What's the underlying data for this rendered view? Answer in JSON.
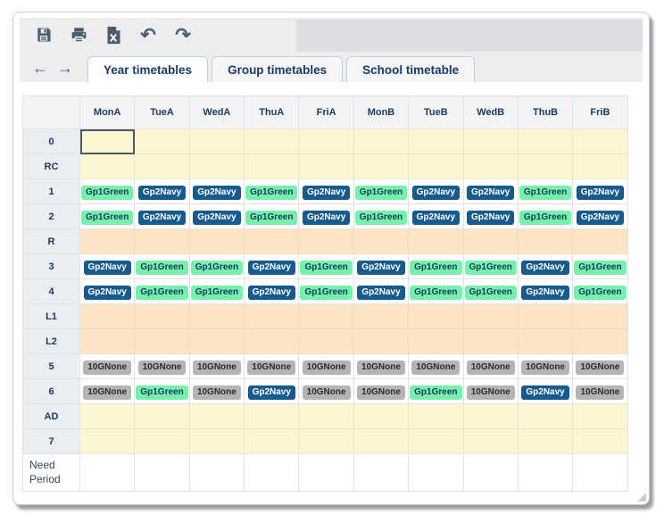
{
  "toolbar": {
    "icons": [
      {
        "name": "save-icon"
      },
      {
        "name": "print-icon"
      },
      {
        "name": "excel-export-icon"
      },
      {
        "name": "undo-icon",
        "glyph": "↶"
      },
      {
        "name": "redo-icon",
        "glyph": "↷"
      }
    ]
  },
  "tab_bar": {
    "back_arrow": "←",
    "forward_arrow": "→",
    "tabs": [
      {
        "label": "Year timetables",
        "active": true
      },
      {
        "label": "Group timetables",
        "active": false
      },
      {
        "label": "School timetable",
        "active": false
      }
    ]
  },
  "colors": {
    "accent_navy": "#1b3a66",
    "icon_slate": "#4a5c6e",
    "row_yellow": "#fdf6d1",
    "row_peach": "#fce5c5",
    "toolbar_gray": "#ecedef",
    "band_gray": "#dcdee2"
  },
  "timetable": {
    "columns": [
      "MonA",
      "TueA",
      "WedA",
      "ThuA",
      "FriA",
      "MonB",
      "TueB",
      "WedB",
      "ThuB",
      "FriB"
    ],
    "badge_styles": {
      "Gp1Green": {
        "bg": "#76f0ac",
        "fg": "#123a5e"
      },
      "Gp2Navy": {
        "bg": "#175a8e",
        "fg": "#ffffff"
      },
      "10GNone": {
        "bg": "#b4b4b4",
        "fg": "#2b2b2b"
      }
    },
    "rows": [
      {
        "label": "0",
        "bg": "yellow",
        "selected_cell": 0,
        "cells": [
          "",
          "",
          "",
          "",
          "",
          "",
          "",
          "",
          "",
          ""
        ]
      },
      {
        "label": "RC",
        "bg": "yellow",
        "cells": [
          "",
          "",
          "",
          "",
          "",
          "",
          "",
          "",
          "",
          ""
        ]
      },
      {
        "label": "1",
        "bg": "white",
        "cells": [
          "Gp1Green",
          "Gp2Navy",
          "Gp2Navy",
          "Gp1Green",
          "Gp2Navy",
          "Gp1Green",
          "Gp2Navy",
          "Gp2Navy",
          "Gp1Green",
          "Gp2Navy"
        ]
      },
      {
        "label": "2",
        "bg": "white",
        "cells": [
          "Gp1Green",
          "Gp2Navy",
          "Gp2Navy",
          "Gp1Green",
          "Gp2Navy",
          "Gp1Green",
          "Gp2Navy",
          "Gp2Navy",
          "Gp1Green",
          "Gp2Navy"
        ]
      },
      {
        "label": "R",
        "bg": "peach",
        "cells": [
          "",
          "",
          "",
          "",
          "",
          "",
          "",
          "",
          "",
          ""
        ]
      },
      {
        "label": "3",
        "bg": "white",
        "cells": [
          "Gp2Navy",
          "Gp1Green",
          "Gp1Green",
          "Gp2Navy",
          "Gp1Green",
          "Gp2Navy",
          "Gp1Green",
          "Gp1Green",
          "Gp2Navy",
          "Gp1Green"
        ]
      },
      {
        "label": "4",
        "bg": "white",
        "cells": [
          "Gp2Navy",
          "Gp1Green",
          "Gp1Green",
          "Gp2Navy",
          "Gp1Green",
          "Gp2Navy",
          "Gp1Green",
          "Gp1Green",
          "Gp2Navy",
          "Gp1Green"
        ]
      },
      {
        "label": "L1",
        "bg": "peach",
        "cells": [
          "",
          "",
          "",
          "",
          "",
          "",
          "",
          "",
          "",
          ""
        ]
      },
      {
        "label": "L2",
        "bg": "peach",
        "cells": [
          "",
          "",
          "",
          "",
          "",
          "",
          "",
          "",
          "",
          ""
        ]
      },
      {
        "label": "5",
        "bg": "white",
        "cells": [
          "10GNone",
          "10GNone",
          "10GNone",
          "10GNone",
          "10GNone",
          "10GNone",
          "10GNone",
          "10GNone",
          "10GNone",
          "10GNone"
        ]
      },
      {
        "label": "6",
        "bg": "white",
        "cells": [
          "10GNone",
          "Gp1Green",
          "10GNone",
          "Gp2Navy",
          "10GNone",
          "10GNone",
          "Gp1Green",
          "10GNone",
          "Gp2Navy",
          "10GNone"
        ]
      },
      {
        "label": "AD",
        "bg": "yellow",
        "cells": [
          "",
          "",
          "",
          "",
          "",
          "",
          "",
          "",
          "",
          ""
        ]
      },
      {
        "label": "7",
        "bg": "yellow",
        "cells": [
          "",
          "",
          "",
          "",
          "",
          "",
          "",
          "",
          "",
          ""
        ]
      },
      {
        "label": "Need Period",
        "bg": "white",
        "need_row": true,
        "cells": [
          "",
          "",
          "",
          "",
          "",
          "",
          "",
          "",
          "",
          ""
        ]
      }
    ]
  }
}
